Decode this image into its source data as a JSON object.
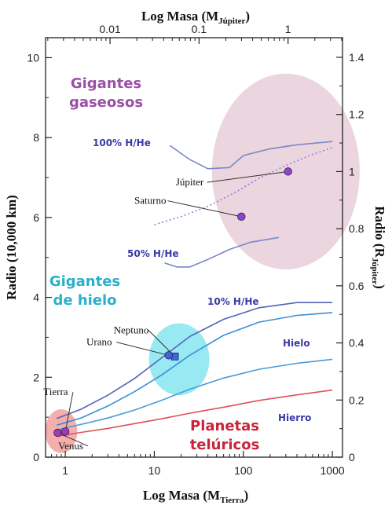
{
  "chart_data": {
    "type": "line",
    "title": "",
    "top_axis": {
      "label_main": "Log Masa (M",
      "label_sub": "Júpiter",
      "label_end": ")",
      "ticks": [
        "0.01",
        "0.1",
        "1"
      ],
      "tick_values": [
        0.01,
        0.1,
        1
      ]
    },
    "bottom_axis": {
      "label_main": "Log Masa (M",
      "label_sub": "Tierra",
      "label_end": ")",
      "ticks": [
        "1",
        "10",
        "100",
        "1000"
      ],
      "tick_values": [
        1,
        10,
        100,
        1000
      ],
      "scale": "log",
      "range": [
        0.6,
        1300
      ]
    },
    "left_axis": {
      "label": "Radio (10,000 km)",
      "ticks": [
        "0",
        "2",
        "4",
        "6",
        "8",
        "10"
      ],
      "tick_values": [
        0,
        2,
        4,
        6,
        8,
        10
      ],
      "range": [
        0,
        10.5
      ]
    },
    "right_axis": {
      "label_main": "Radio (R",
      "label_sub": "Júpiter",
      "label_end": ")",
      "ticks": [
        "0",
        "0.2",
        "0.4",
        "0.6",
        "0.8",
        "1",
        "1.2",
        "1.4"
      ],
      "tick_values": [
        0,
        0.2,
        0.4,
        0.6,
        0.8,
        1.0,
        1.2,
        1.4
      ]
    },
    "regions": [
      {
        "label_lines": [
          "Gigantes",
          "gaseosos"
        ],
        "color": "#9b4fa8",
        "fill": "#e8cfd9",
        "center": [
          300,
          7.15
        ],
        "rx_decades": 0.83,
        "ry": 2.45
      },
      {
        "label_lines": [
          "Gigantes",
          "de hielo"
        ],
        "color": "#2ab0c8",
        "fill": "#7fe3f0",
        "center": [
          19,
          2.45
        ],
        "rx_decades": 0.34,
        "ry": 0.9
      },
      {
        "label_lines": [
          "Planetas",
          "telúricos"
        ],
        "color": "#c9233a",
        "fill": "#f29a9a",
        "center": [
          0.9,
          0.65
        ],
        "rx_decades": 0.18,
        "ry": 0.55
      }
    ],
    "series": [
      {
        "name": "100% H/He",
        "color": "#7c86c9",
        "x": [
          15,
          25,
          40,
          70,
          100,
          200,
          400,
          1000
        ],
        "y": [
          7.8,
          7.45,
          7.22,
          7.25,
          7.55,
          7.72,
          7.82,
          7.9
        ]
      },
      {
        "name": "50% H/He",
        "color": "#7c86c9",
        "x": [
          13,
          18,
          25,
          40,
          70,
          120,
          250
        ],
        "y": [
          4.86,
          4.76,
          4.76,
          4.95,
          5.2,
          5.38,
          5.5
        ]
      },
      {
        "name": "10% H/He",
        "color": "#5563b8",
        "x": [
          0.8,
          1.5,
          3,
          6,
          12,
          25,
          60,
          150,
          400,
          1000
        ],
        "y": [
          0.97,
          1.2,
          1.55,
          1.97,
          2.48,
          3.02,
          3.45,
          3.74,
          3.87,
          3.87
        ]
      },
      {
        "name": "Hielo",
        "color": "#3c8fd6",
        "x": [
          0.8,
          1.5,
          3,
          6,
          12,
          25,
          60,
          150,
          400,
          1000
        ],
        "y": [
          0.8,
          0.98,
          1.28,
          1.64,
          2.05,
          2.55,
          3.05,
          3.38,
          3.55,
          3.62
        ]
      },
      {
        "name": "",
        "color": "#4a9bd8",
        "x": [
          0.8,
          1.5,
          3,
          6,
          12,
          25,
          60,
          150,
          400,
          1000
        ],
        "y": [
          0.68,
          0.82,
          0.98,
          1.18,
          1.42,
          1.7,
          1.98,
          2.2,
          2.35,
          2.45
        ]
      },
      {
        "name": "Hierro",
        "color": "#e0505a",
        "x": [
          0.8,
          1.5,
          3,
          6,
          12,
          25,
          60,
          150,
          400,
          1000
        ],
        "y": [
          0.52,
          0.62,
          0.72,
          0.84,
          0.96,
          1.1,
          1.25,
          1.42,
          1.56,
          1.68
        ]
      },
      {
        "name": "",
        "color": "#9b7ad8",
        "dashed": true,
        "x": [
          10,
          20,
          40,
          80,
          150,
          300,
          600,
          1000
        ],
        "y": [
          5.82,
          6.02,
          6.28,
          6.62,
          6.98,
          7.3,
          7.58,
          7.75
        ]
      }
    ],
    "planets": [
      {
        "name": "Júpiter",
        "x": 318,
        "y": 7.15,
        "color": "#8a47c8",
        "shape": "circle",
        "label_x": 25,
        "label_y": 6.8
      },
      {
        "name": "Saturno",
        "x": 95,
        "y": 6.02,
        "color": "#8a47c8",
        "shape": "circle",
        "label_x": 9,
        "label_y": 6.34
      },
      {
        "name": "Neptuno",
        "x": 17,
        "y": 2.52,
        "color": "#3a68d8",
        "shape": "square",
        "label_x": 5.5,
        "label_y": 3.1
      },
      {
        "name": "Urano",
        "x": 14.5,
        "y": 2.55,
        "color": "#3a68d8",
        "shape": "circle",
        "label_x": 2.4,
        "label_y": 2.8
      },
      {
        "name": "Tierra",
        "x": 1.0,
        "y": 0.64,
        "color": "#9b3fb0",
        "shape": "circle",
        "label_x": 0.78,
        "label_y": 1.55
      },
      {
        "name": "Venus",
        "x": 0.82,
        "y": 0.61,
        "color": "#9b3fb0",
        "shape": "circle",
        "label_x": 1.15,
        "label_y": 0.2
      }
    ],
    "grid": false,
    "legend": "none"
  }
}
